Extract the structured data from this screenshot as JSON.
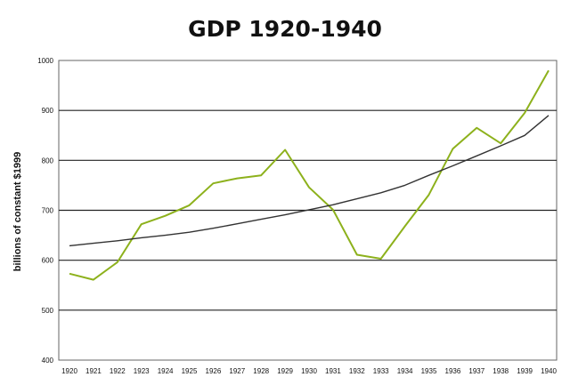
{
  "chart_data": {
    "type": "line",
    "title": "GDP 1920-1940",
    "xlabel": "",
    "ylabel": "billions of constant $1999",
    "x": [
      "1920",
      "1921",
      "1922",
      "1923",
      "1924",
      "1925",
      "1926",
      "1927",
      "1928",
      "1929",
      "1930",
      "1931",
      "1932",
      "1933",
      "1934",
      "1935",
      "1936",
      "1937",
      "1938",
      "1939",
      "1940"
    ],
    "ylim": [
      400,
      1000
    ],
    "yticks": [
      400,
      500,
      600,
      700,
      800,
      900,
      1000
    ],
    "grid": true,
    "legend": "none",
    "series": [
      {
        "color": "#8db11c",
        "values": [
          573,
          561,
          596,
          672,
          689,
          710,
          754,
          764,
          770,
          821,
          746,
          701,
          611,
          603,
          668,
          731,
          823,
          865,
          834,
          895,
          980
        ]
      },
      {
        "color": "#333333",
        "style": "trendline",
        "values": [
          629,
          634,
          639,
          645,
          650,
          656,
          664,
          673,
          682,
          691,
          701,
          711,
          723,
          735,
          750,
          770,
          789,
          809,
          829,
          850,
          890
        ]
      }
    ]
  }
}
